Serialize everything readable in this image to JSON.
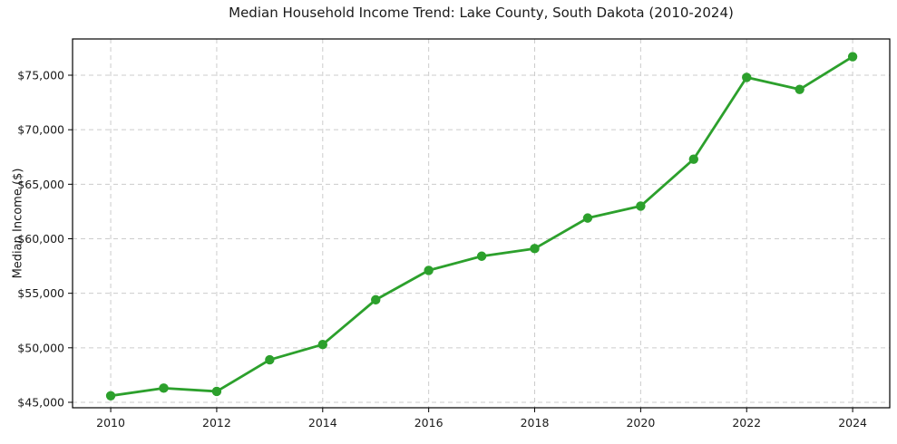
{
  "chart_data": {
    "type": "line",
    "title": "Median Household Income Trend: Lake County, South Dakota (2010-2024)",
    "xlabel": "",
    "ylabel": "Median Income ($)",
    "x": [
      2010,
      2011,
      2012,
      2013,
      2014,
      2015,
      2016,
      2017,
      2018,
      2019,
      2020,
      2021,
      2022,
      2023,
      2024
    ],
    "series": [
      {
        "name": "Median household income",
        "color": "#2ca02c",
        "values": [
          45600,
          46300,
          46000,
          48900,
          50300,
          54400,
          57100,
          58400,
          59100,
          61900,
          63000,
          67300,
          74800,
          73700,
          76700
        ]
      }
    ],
    "axes": {
      "xlim": [
        2009.28,
        2024.7
      ],
      "ylim": [
        44500,
        78325
      ],
      "x_ticks": [
        2010,
        2012,
        2014,
        2016,
        2018,
        2020,
        2022,
        2024
      ],
      "x_tick_labels": [
        "2010",
        "2012",
        "2014",
        "2016",
        "2018",
        "2020",
        "2022",
        "2024"
      ],
      "y_ticks": [
        45000,
        50000,
        55000,
        60000,
        65000,
        70000,
        75000
      ],
      "y_tick_labels": [
        "$45,000",
        "$50,000",
        "$55,000",
        "$60,000",
        "$65,000",
        "$70,000",
        "$75,000"
      ]
    },
    "grid": {
      "show": true,
      "style": "dashed",
      "color": "#cccccc"
    },
    "legend": {
      "show": false
    },
    "style": {
      "line_color": "#2ca02c",
      "marker": "circle",
      "background": "#ffffff",
      "text_color": "#1a1a1a",
      "axis_color": "#000000"
    }
  }
}
